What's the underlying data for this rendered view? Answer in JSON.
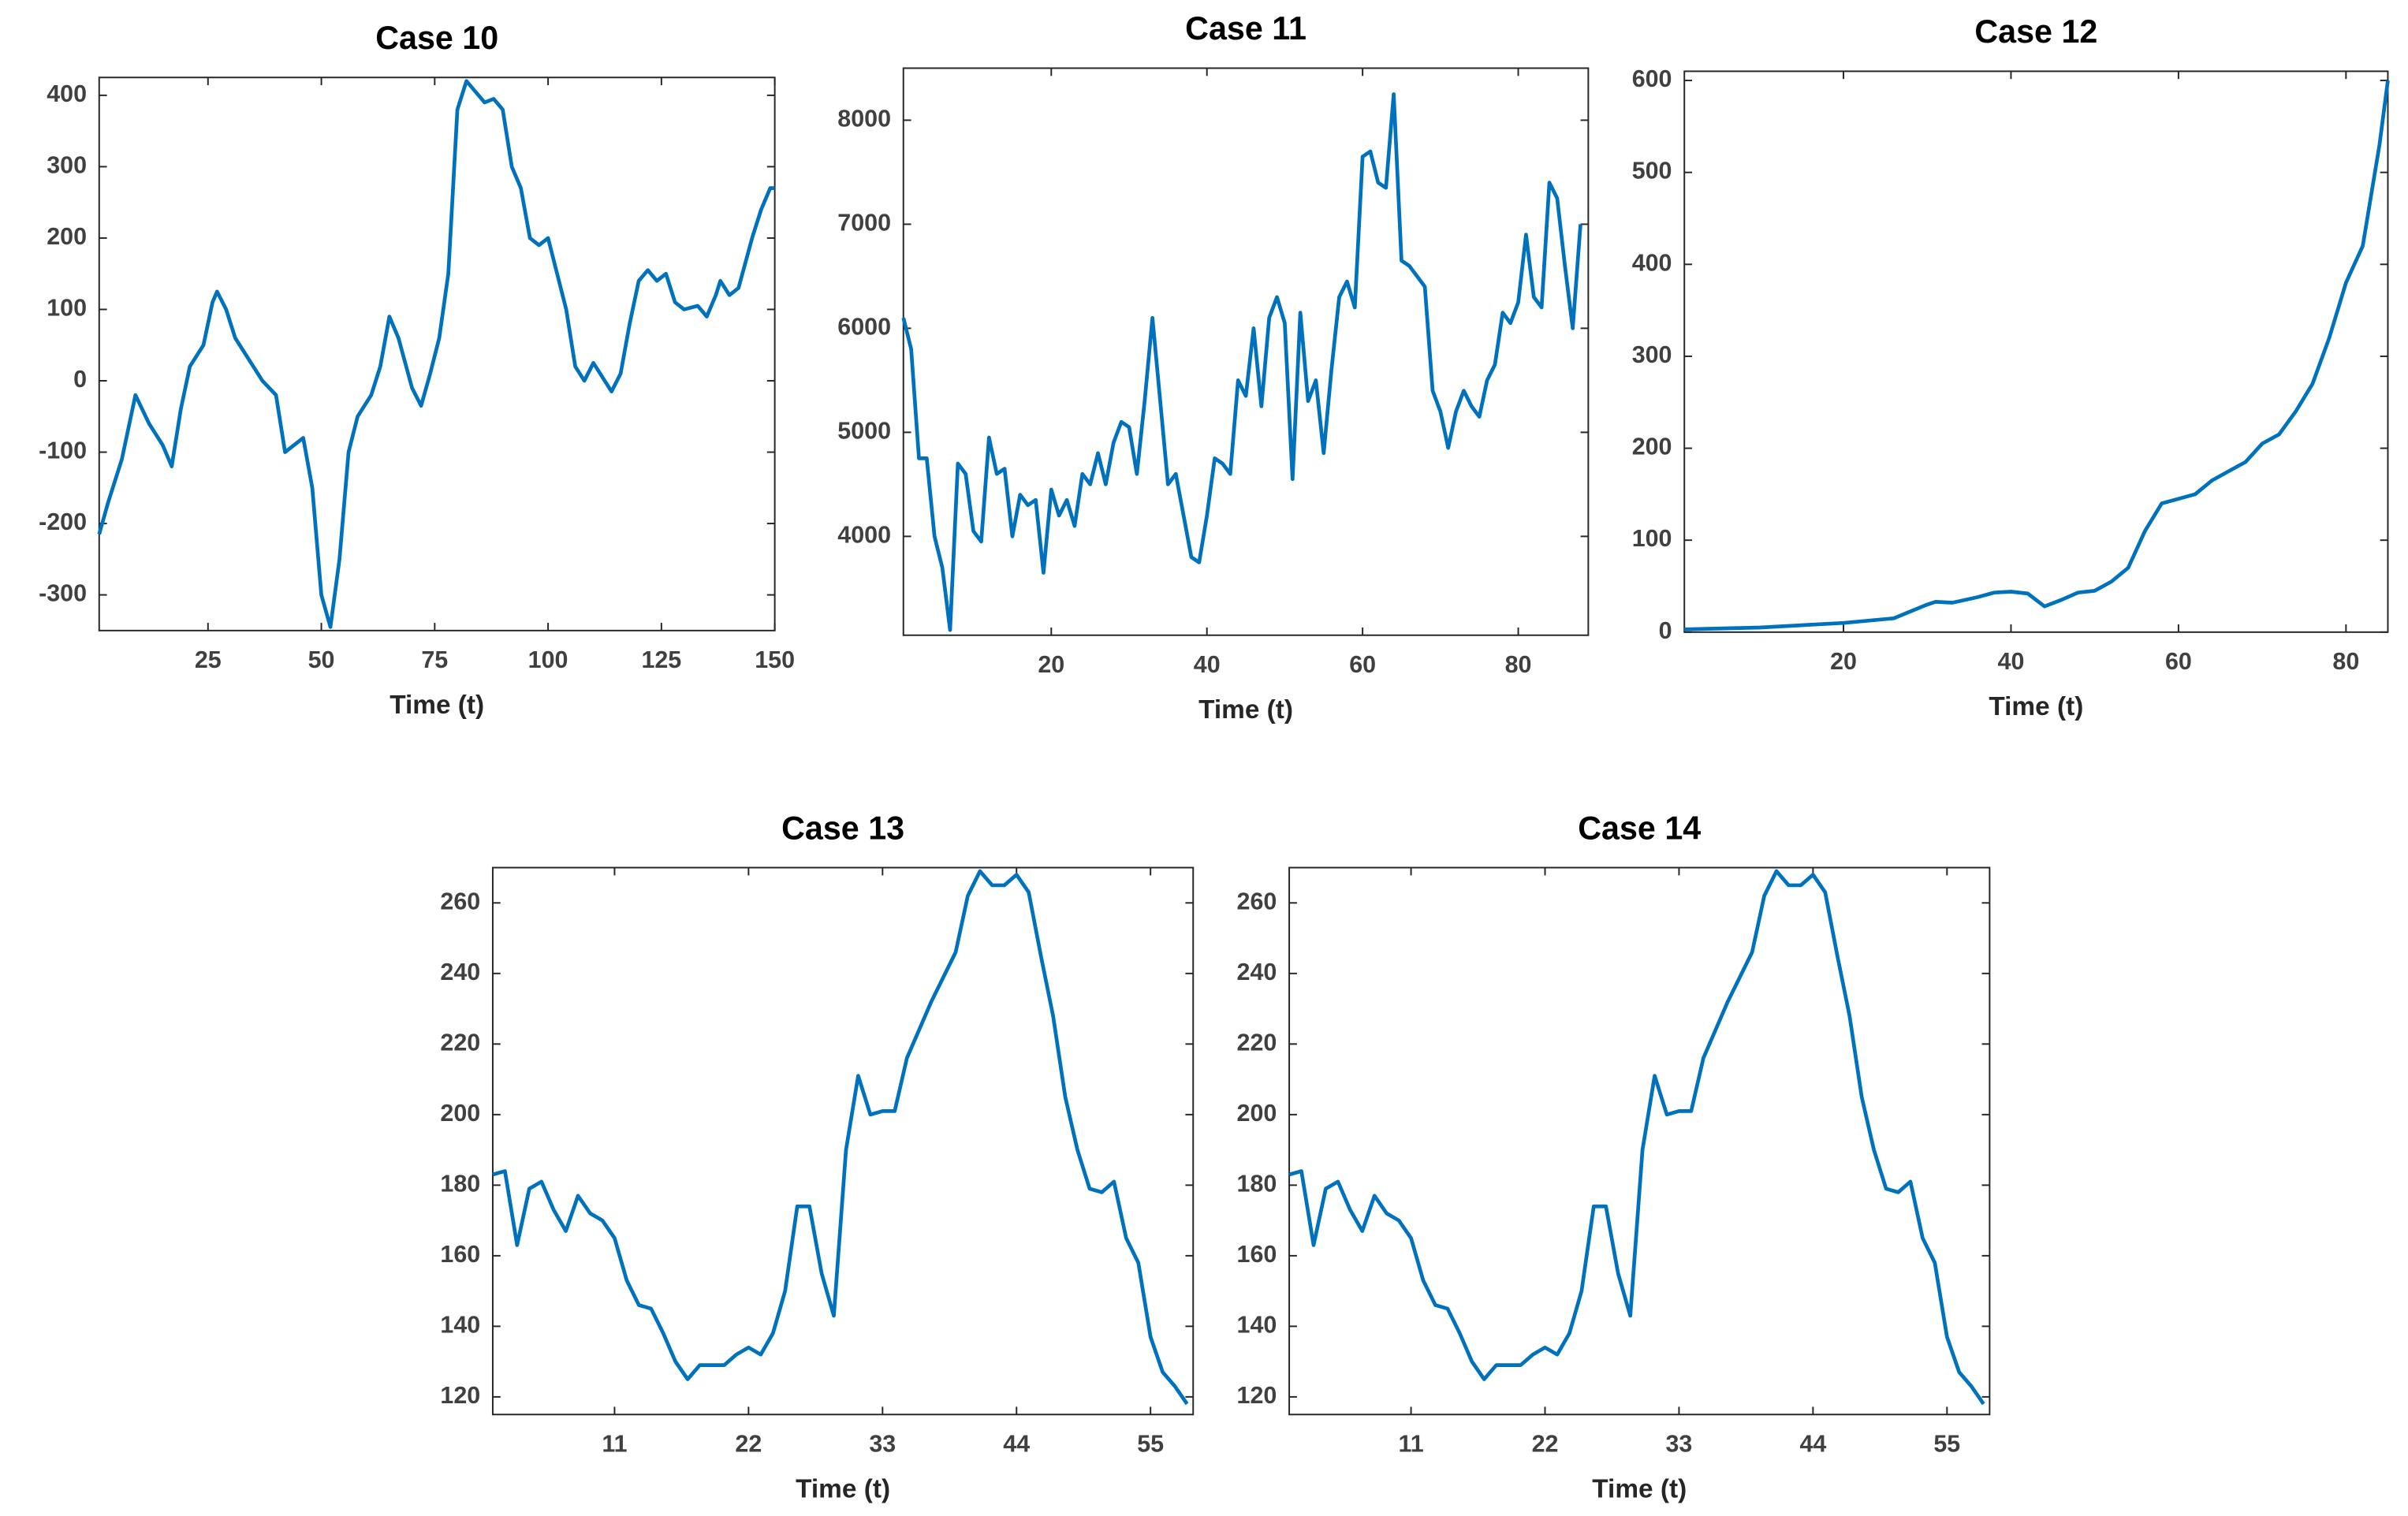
{
  "chart_data": [
    {
      "type": "line",
      "title": "Case 10",
      "x_label": "Time (t)",
      "color": "#0072bd",
      "x": [
        1,
        3,
        6,
        9,
        12,
        15,
        17,
        19,
        21,
        24,
        26,
        27,
        29,
        31,
        34,
        37,
        40,
        42,
        44,
        46,
        48,
        50,
        52,
        54,
        56,
        58,
        61,
        63,
        65,
        67,
        70,
        72,
        74,
        76,
        78,
        80,
        82,
        84,
        86,
        88,
        90,
        92,
        94,
        96,
        98,
        100,
        102,
        104,
        106,
        108,
        110,
        112,
        114,
        116,
        118,
        120,
        122,
        124,
        126,
        128,
        130,
        133,
        135,
        137,
        138,
        140,
        142,
        145,
        147,
        149,
        150
      ],
      "values": [
        -215,
        -170,
        -110,
        -20,
        -60,
        -90,
        -120,
        -40,
        20,
        50,
        110,
        125,
        100,
        60,
        30,
        0,
        -20,
        -100,
        -90,
        -80,
        -150,
        -300,
        -345,
        -250,
        -100,
        -50,
        -20,
        20,
        90,
        60,
        -10,
        -35,
        10,
        60,
        150,
        380,
        420,
        405,
        390,
        395,
        380,
        300,
        270,
        200,
        190,
        200,
        150,
        100,
        20,
        0,
        25,
        5,
        -15,
        10,
        80,
        140,
        155,
        140,
        150,
        110,
        100,
        105,
        90,
        120,
        140,
        120,
        130,
        200,
        240,
        270,
        270
      ],
      "xlim": [
        1,
        150
      ],
      "ylim": [
        -350,
        425
      ],
      "xticks": [
        25,
        50,
        75,
        100,
        125,
        150
      ],
      "yticks": [
        -300,
        -200,
        -100,
        0,
        100,
        200,
        300,
        400
      ]
    },
    {
      "type": "line",
      "title": "Case 11",
      "x_label": "Time (t)",
      "color": "#0072bd",
      "x": [
        1,
        2,
        3,
        4,
        5,
        6,
        7,
        8,
        9,
        10,
        11,
        12,
        13,
        14,
        15,
        16,
        17,
        18,
        19,
        20,
        21,
        22,
        23,
        24,
        25,
        26,
        27,
        28,
        29,
        30,
        31,
        32,
        33,
        34,
        35,
        36,
        37,
        38,
        39,
        40,
        41,
        42,
        43,
        44,
        45,
        46,
        47,
        48,
        49,
        50,
        51,
        52,
        53,
        54,
        55,
        56,
        57,
        58,
        59,
        60,
        61,
        62,
        63,
        64,
        65,
        66,
        67,
        68,
        69,
        70,
        71,
        72,
        73,
        74,
        75,
        76,
        77,
        78,
        79,
        80,
        81,
        82,
        83,
        84,
        85,
        86,
        87,
        88
      ],
      "values": [
        6100,
        5800,
        4750,
        4750,
        4000,
        3700,
        3100,
        4700,
        4600,
        4050,
        3950,
        4950,
        4600,
        4650,
        4000,
        4400,
        4300,
        4350,
        3650,
        4450,
        4200,
        4350,
        4100,
        4600,
        4500,
        4800,
        4500,
        4900,
        5100,
        5050,
        4600,
        5300,
        6100,
        5300,
        4500,
        4600,
        4200,
        3800,
        3750,
        4200,
        4750,
        4700,
        4600,
        5500,
        5350,
        6000,
        5250,
        6100,
        6300,
        6050,
        4550,
        6150,
        5300,
        5500,
        4800,
        5600,
        6300,
        6450,
        6200,
        7650,
        7700,
        7400,
        7350,
        8250,
        6650,
        6600,
        6500,
        6400,
        5400,
        5200,
        4850,
        5200,
        5400,
        5250,
        5150,
        5500,
        5650,
        6150,
        6050,
        6250,
        6900,
        6300,
        6200,
        7400,
        7250,
        6600,
        6000,
        7000
      ],
      "xlim": [
        1,
        89
      ],
      "ylim": [
        3050,
        8500
      ],
      "xticks": [
        20,
        40,
        60,
        80
      ],
      "yticks": [
        4000,
        5000,
        6000,
        7000,
        8000
      ]
    },
    {
      "type": "line",
      "title": "Case 12",
      "x_label": "Time (t)",
      "color": "#0072bd",
      "x": [
        1,
        10,
        20,
        26,
        30,
        31,
        33,
        36,
        38,
        40,
        42,
        44,
        46,
        48,
        50,
        52,
        54,
        56,
        58,
        60,
        62,
        64,
        66,
        68,
        70,
        72,
        74,
        76,
        78,
        80,
        81,
        82,
        84,
        85
      ],
      "values": [
        3,
        5,
        10,
        15,
        30,
        33,
        32,
        38,
        43,
        44,
        42,
        28,
        35,
        43,
        45,
        55,
        70,
        110,
        140,
        145,
        150,
        165,
        175,
        185,
        205,
        215,
        240,
        270,
        320,
        380,
        400,
        420,
        530,
        600
      ],
      "xlim": [
        1,
        85
      ],
      "ylim": [
        0,
        610
      ],
      "xticks": [
        20,
        40,
        60,
        80
      ],
      "yticks": [
        0,
        100,
        200,
        300,
        400,
        500,
        600
      ]
    },
    {
      "type": "line",
      "title": "Case 13",
      "x_label": "Time (t)",
      "color": "#0072bd",
      "x": [
        1,
        2,
        3,
        4,
        5,
        6,
        7,
        8,
        9,
        10,
        11,
        12,
        13,
        14,
        15,
        16,
        17,
        18,
        19,
        20,
        21,
        22,
        23,
        24,
        25,
        26,
        27,
        28,
        29,
        30,
        31,
        32,
        33,
        34,
        35,
        36,
        37,
        38,
        39,
        40,
        41,
        42,
        43,
        44,
        45,
        46,
        47,
        48,
        49,
        50,
        51,
        52,
        53,
        54,
        55,
        56,
        57,
        58
      ],
      "values": [
        183,
        184,
        163,
        179,
        181,
        173,
        167,
        177,
        172,
        170,
        165,
        153,
        146,
        145,
        138,
        130,
        125,
        129,
        129,
        129,
        132,
        134,
        132,
        138,
        150,
        174,
        174,
        155,
        143,
        190,
        211,
        200,
        201,
        201,
        216,
        224,
        232,
        239,
        246,
        262,
        269,
        265,
        265,
        268,
        263,
        245,
        228,
        205,
        190,
        179,
        178,
        181,
        165,
        158,
        137,
        127,
        123,
        118
      ],
      "xlim": [
        1,
        58.5
      ],
      "ylim": [
        115,
        270
      ],
      "xticks": [
        11,
        22,
        33,
        44,
        55
      ],
      "yticks": [
        120,
        140,
        160,
        180,
        200,
        220,
        240,
        260
      ]
    },
    {
      "type": "line",
      "title": "Case 14",
      "x_label": "Time (t)",
      "color": "#0072bd",
      "x": [
        1,
        2,
        3,
        4,
        5,
        6,
        7,
        8,
        9,
        10,
        11,
        12,
        13,
        14,
        15,
        16,
        17,
        18,
        19,
        20,
        21,
        22,
        23,
        24,
        25,
        26,
        27,
        28,
        29,
        30,
        31,
        32,
        33,
        34,
        35,
        36,
        37,
        38,
        39,
        40,
        41,
        42,
        43,
        44,
        45,
        46,
        47,
        48,
        49,
        50,
        51,
        52,
        53,
        54,
        55,
        56,
        57,
        58
      ],
      "values": [
        183,
        184,
        163,
        179,
        181,
        173,
        167,
        177,
        172,
        170,
        165,
        153,
        146,
        145,
        138,
        130,
        125,
        129,
        129,
        129,
        132,
        134,
        132,
        138,
        150,
        174,
        174,
        155,
        143,
        190,
        211,
        200,
        201,
        201,
        216,
        224,
        232,
        239,
        246,
        262,
        269,
        265,
        265,
        268,
        263,
        245,
        228,
        205,
        190,
        179,
        178,
        181,
        165,
        158,
        137,
        127,
        123,
        118
      ],
      "xlim": [
        1,
        58.5
      ],
      "ylim": [
        115,
        270
      ],
      "xticks": [
        11,
        22,
        33,
        44,
        55
      ],
      "yticks": [
        120,
        140,
        160,
        180,
        200,
        220,
        240,
        260
      ]
    }
  ]
}
